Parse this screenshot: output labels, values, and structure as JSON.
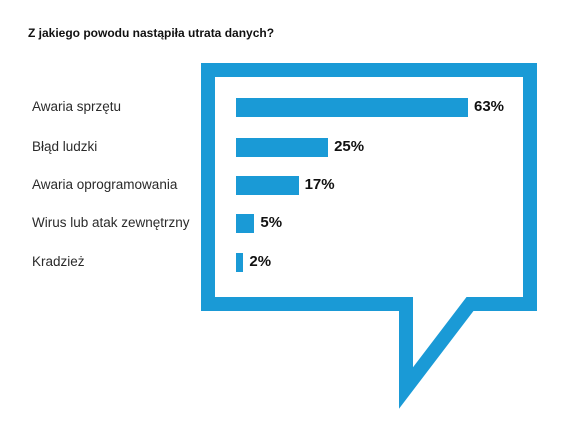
{
  "chart_data": {
    "type": "bar",
    "orientation": "horizontal",
    "title": "Z jakiego powodu nastąpiła utrata danych?",
    "categories": [
      "Awaria sprzętu",
      "Błąd ludzki",
      "Awaria oprogramowania",
      "Wirus lub atak zewnętrzny",
      "Kradzież"
    ],
    "values": [
      63,
      25,
      17,
      5,
      2
    ],
    "value_labels": [
      "63%",
      "25%",
      "17%",
      "5%",
      "2%"
    ],
    "unit": "%",
    "xlim": [
      0,
      63
    ],
    "grid": false,
    "legend": "none",
    "colors": {
      "bar": "#1a9ad6",
      "bubble_border": "#1a9ad6",
      "text": "#2a2a2a",
      "title": "#111111"
    }
  }
}
